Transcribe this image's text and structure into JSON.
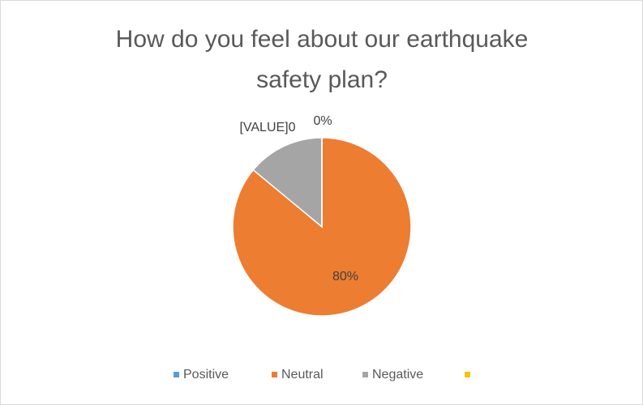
{
  "chart_data": {
    "type": "pie",
    "title": [
      "How do you feel about our earthquake",
      "safety plan?"
    ],
    "categories": [
      "Positive",
      "Neutral",
      "Negative",
      null
    ],
    "values": [
      0,
      80,
      13,
      0
    ],
    "value_labels": [
      "0%",
      "80%",
      null,
      "[VALUE]0"
    ],
    "colors": [
      "#5b9bd5",
      "#ed7d31",
      "#a5a5a5",
      "#ffc000"
    ],
    "legend": "bottom"
  }
}
